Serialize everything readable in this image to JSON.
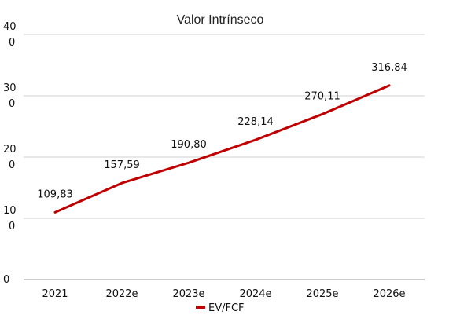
{
  "chart_data": {
    "type": "line",
    "title": "Valor Intrínseco",
    "categories": [
      "2021",
      "2022e",
      "2023e",
      "2024e",
      "2025e",
      "2026e"
    ],
    "series": [
      {
        "name": "EV/FCF",
        "values": [
          109.83,
          157.59,
          190.8,
          228.14,
          270.11,
          316.84
        ],
        "labels": [
          "109,83",
          "157,59",
          "190,80",
          "228,14",
          "270,11",
          "316,84"
        ],
        "color": "#c00000"
      }
    ],
    "ylim": [
      0,
      400
    ],
    "yticks": [
      {
        "value": 0,
        "lines": [
          "0"
        ]
      },
      {
        "value": 100,
        "lines": [
          "10",
          "0"
        ]
      },
      {
        "value": 200,
        "lines": [
          "20",
          "0"
        ]
      },
      {
        "value": 300,
        "lines": [
          "30",
          "0"
        ]
      },
      {
        "value": 400,
        "lines": [
          "40",
          "0"
        ]
      }
    ],
    "grid": true,
    "legend_position": "bottom",
    "xlabel": "",
    "ylabel": ""
  }
}
